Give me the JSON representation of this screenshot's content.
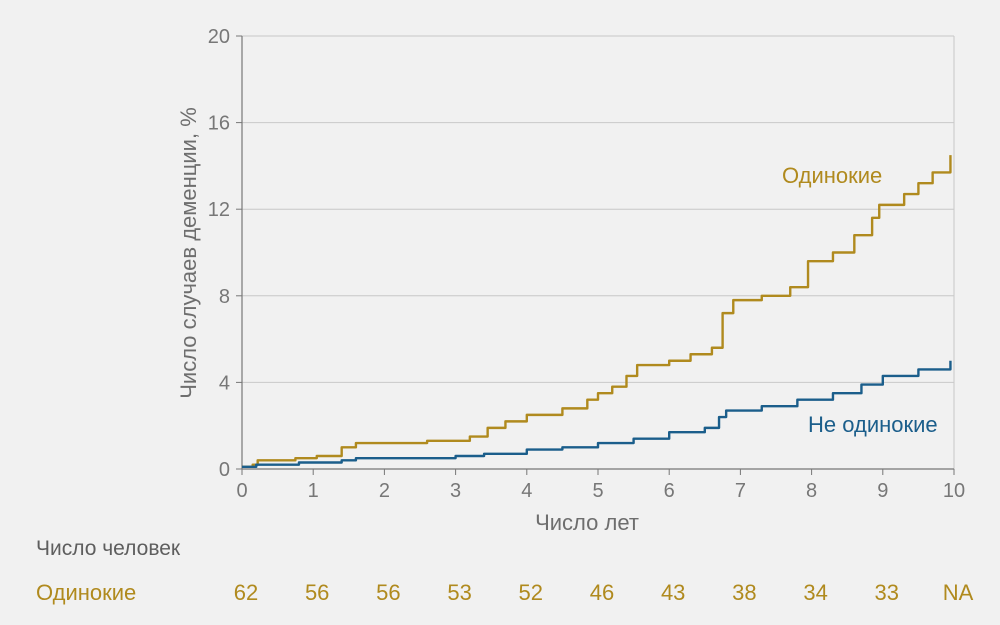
{
  "colors": {
    "lonely": "#b08a1e",
    "not_lonely": "#1b5e8b",
    "grid": "#c8c8c8",
    "axis": "#777777"
  },
  "chart_data": {
    "type": "line",
    "xlabel": "Число лет",
    "ylabel": "Число случаев деменции, %",
    "xlim": [
      0,
      10
    ],
    "ylim": [
      0,
      20
    ],
    "x_ticks": [
      "0",
      "1",
      "2",
      "3",
      "4",
      "5",
      "6",
      "7",
      "8",
      "9",
      "10"
    ],
    "y_ticks": [
      "0",
      "4",
      "8",
      "12",
      "16",
      "20"
    ],
    "grid": true,
    "series": [
      {
        "name": "Одинокие",
        "color": "#b08a1e",
        "x": [
          0,
          0.15,
          0.22,
          0.75,
          1.05,
          1.4,
          1.6,
          2.6,
          3.2,
          3.45,
          3.7,
          4.0,
          4.5,
          4.85,
          5.0,
          5.2,
          5.4,
          5.55,
          6.0,
          6.3,
          6.6,
          6.75,
          6.9,
          7.3,
          7.7,
          7.95,
          8.3,
          8.6,
          8.85,
          8.95,
          9.3,
          9.5,
          9.7,
          9.95
        ],
        "y": [
          0.1,
          0.2,
          0.4,
          0.5,
          0.6,
          1.0,
          1.2,
          1.3,
          1.5,
          1.9,
          2.2,
          2.5,
          2.8,
          3.2,
          3.5,
          3.8,
          4.3,
          4.8,
          5.0,
          5.3,
          5.6,
          7.2,
          7.8,
          8.0,
          8.4,
          9.6,
          10.0,
          10.8,
          11.6,
          12.2,
          12.7,
          13.2,
          13.7,
          14.5
        ]
      },
      {
        "name": "Не одинокие",
        "color": "#1b5e8b",
        "x": [
          0,
          0.2,
          0.8,
          1.4,
          1.6,
          3.0,
          3.4,
          4.0,
          4.5,
          5.0,
          5.5,
          6.0,
          6.5,
          6.7,
          6.8,
          7.3,
          7.8,
          8.3,
          8.7,
          9.0,
          9.5,
          9.95
        ],
        "y": [
          0.1,
          0.2,
          0.3,
          0.4,
          0.5,
          0.6,
          0.7,
          0.9,
          1.0,
          1.2,
          1.4,
          1.7,
          1.9,
          2.4,
          2.7,
          2.9,
          3.2,
          3.5,
          3.9,
          4.3,
          4.6,
          5.0
        ]
      }
    ],
    "annotations": [
      {
        "text": "Одинокие",
        "series": 0
      },
      {
        "text": "Не одинокие",
        "series": 1
      }
    ]
  },
  "risk_table": {
    "title": "Число человек",
    "row_label": "Одинокие",
    "values": [
      "62",
      "56",
      "56",
      "53",
      "52",
      "46",
      "43",
      "38",
      "34",
      "33",
      "NA"
    ]
  }
}
